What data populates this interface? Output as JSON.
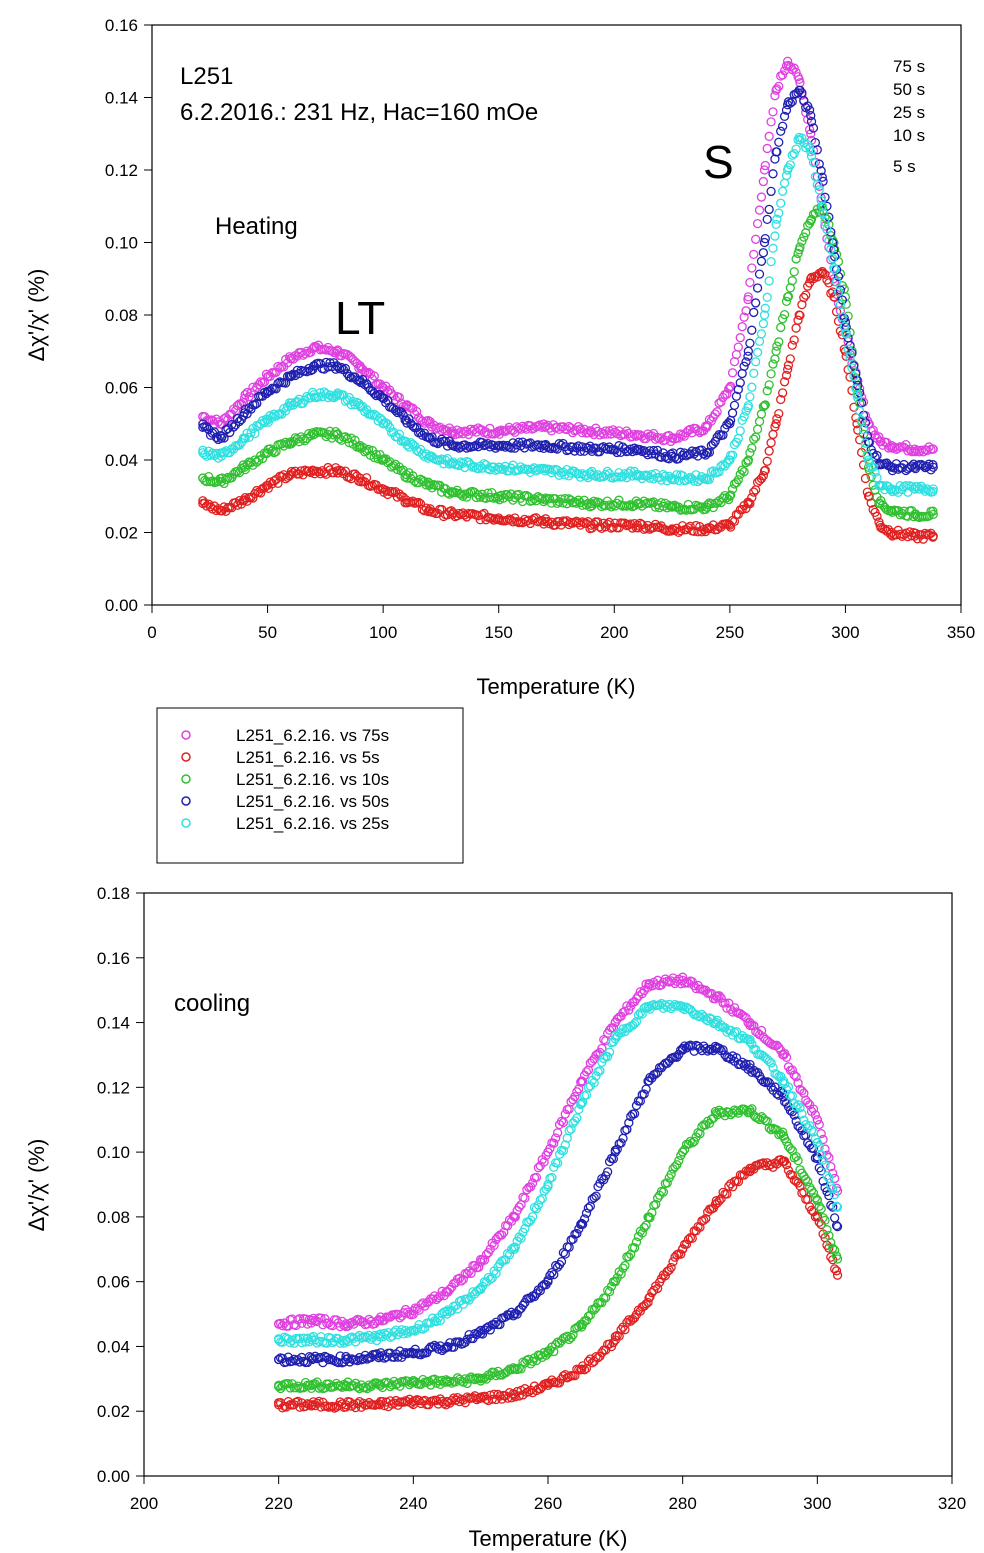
{
  "chart_data": [
    {
      "type": "scatter",
      "panel": "heating",
      "title": "",
      "xlabel": "Temperature (K)",
      "ylabel": "Δχ'/χ' (%)",
      "xlim": [
        0,
        350
      ],
      "ylim": [
        0,
        0.16
      ],
      "xticks": [
        0,
        50,
        100,
        150,
        200,
        250,
        300,
        350
      ],
      "yticks": [
        0.0,
        0.02,
        0.04,
        0.06,
        0.08,
        0.1,
        0.12,
        0.14,
        0.16
      ],
      "grid": false,
      "annotations": {
        "sample": "L251",
        "conditions": "6.2.2016.: 231 Hz, Hac=160 mOe",
        "mode": "Heating",
        "peak_lt": "LT",
        "peak_s": "S",
        "times": [
          "75 s",
          "50 s",
          "25 s",
          "10 s",
          "5 s"
        ]
      },
      "series": [
        {
          "name": "L251_6.2.16. vs 75s",
          "color": "#e040e0",
          "x": [
            22,
            30,
            40,
            50,
            60,
            70,
            80,
            90,
            100,
            110,
            120,
            130,
            150,
            170,
            190,
            210,
            225,
            240,
            250,
            258,
            265,
            270,
            275,
            280,
            285,
            290,
            295,
            300,
            305,
            310,
            315,
            320,
            330,
            338
          ],
          "y": [
            0.052,
            0.05,
            0.057,
            0.063,
            0.068,
            0.071,
            0.07,
            0.066,
            0.06,
            0.055,
            0.05,
            0.048,
            0.048,
            0.049,
            0.048,
            0.047,
            0.046,
            0.049,
            0.06,
            0.085,
            0.12,
            0.142,
            0.15,
            0.145,
            0.13,
            0.11,
            0.09,
            0.075,
            0.062,
            0.05,
            0.045,
            0.044,
            0.043,
            0.043
          ]
        },
        {
          "name": "L251_6.2.16. vs 5s",
          "color": "#e02020",
          "x": [
            22,
            30,
            40,
            50,
            60,
            70,
            80,
            90,
            100,
            110,
            120,
            130,
            150,
            170,
            190,
            210,
            225,
            240,
            250,
            258,
            265,
            270,
            275,
            280,
            285,
            290,
            295,
            300,
            305,
            310,
            315,
            320,
            330,
            338
          ],
          "y": [
            0.028,
            0.026,
            0.029,
            0.033,
            0.036,
            0.037,
            0.037,
            0.035,
            0.032,
            0.029,
            0.026,
            0.025,
            0.024,
            0.023,
            0.022,
            0.022,
            0.021,
            0.021,
            0.022,
            0.028,
            0.037,
            0.05,
            0.065,
            0.08,
            0.09,
            0.092,
            0.085,
            0.07,
            0.05,
            0.03,
            0.022,
            0.02,
            0.019,
            0.019
          ]
        },
        {
          "name": "L251_6.2.16. vs 10s",
          "color": "#30c030",
          "x": [
            22,
            30,
            40,
            50,
            60,
            70,
            80,
            90,
            100,
            110,
            120,
            130,
            150,
            170,
            190,
            210,
            225,
            240,
            250,
            258,
            265,
            270,
            275,
            280,
            285,
            290,
            295,
            300,
            305,
            310,
            315,
            320,
            330,
            338
          ],
          "y": [
            0.035,
            0.034,
            0.038,
            0.042,
            0.045,
            0.047,
            0.047,
            0.044,
            0.04,
            0.036,
            0.033,
            0.031,
            0.03,
            0.029,
            0.028,
            0.028,
            0.027,
            0.027,
            0.03,
            0.04,
            0.055,
            0.07,
            0.085,
            0.098,
            0.106,
            0.11,
            0.1,
            0.085,
            0.06,
            0.038,
            0.028,
            0.026,
            0.025,
            0.025
          ]
        },
        {
          "name": "L251_6.2.16. vs 50s",
          "color": "#2020b0",
          "x": [
            22,
            30,
            40,
            50,
            60,
            70,
            80,
            90,
            100,
            110,
            120,
            130,
            150,
            170,
            190,
            210,
            225,
            240,
            250,
            258,
            265,
            270,
            275,
            280,
            285,
            290,
            295,
            300,
            305,
            310,
            315,
            320,
            330,
            338
          ],
          "y": [
            0.049,
            0.046,
            0.053,
            0.059,
            0.063,
            0.066,
            0.066,
            0.062,
            0.057,
            0.051,
            0.046,
            0.044,
            0.044,
            0.044,
            0.043,
            0.043,
            0.041,
            0.042,
            0.05,
            0.07,
            0.1,
            0.125,
            0.138,
            0.142,
            0.135,
            0.118,
            0.098,
            0.078,
            0.062,
            0.045,
            0.039,
            0.038,
            0.038,
            0.038
          ]
        },
        {
          "name": "L251_6.2.16. vs 25s",
          "color": "#30e0e0",
          "x": [
            22,
            30,
            40,
            50,
            60,
            70,
            80,
            90,
            100,
            110,
            120,
            130,
            150,
            170,
            190,
            210,
            225,
            240,
            250,
            258,
            265,
            270,
            275,
            280,
            285,
            290,
            295,
            300,
            305,
            310,
            315,
            320,
            330,
            338
          ],
          "y": [
            0.042,
            0.041,
            0.046,
            0.051,
            0.055,
            0.058,
            0.058,
            0.055,
            0.05,
            0.045,
            0.041,
            0.039,
            0.038,
            0.037,
            0.036,
            0.036,
            0.035,
            0.035,
            0.04,
            0.055,
            0.08,
            0.105,
            0.12,
            0.129,
            0.125,
            0.11,
            0.093,
            0.075,
            0.058,
            0.04,
            0.033,
            0.032,
            0.032,
            0.032
          ]
        }
      ]
    },
    {
      "type": "scatter",
      "panel": "cooling",
      "title": "",
      "xlabel": "Temperature (K)",
      "ylabel": "Δχ'/χ' (%)",
      "xlim": [
        200,
        320
      ],
      "ylim": [
        0,
        0.18
      ],
      "xticks": [
        200,
        220,
        240,
        260,
        280,
        300,
        320
      ],
      "yticks": [
        0.0,
        0.02,
        0.04,
        0.06,
        0.08,
        0.1,
        0.12,
        0.14,
        0.16,
        0.18
      ],
      "grid": false,
      "annotations": {
        "mode": "cooling"
      },
      "series": [
        {
          "name": "L251_6.2.16. vs 75s",
          "color": "#e040e0",
          "x": [
            220,
            225,
            230,
            235,
            240,
            245,
            250,
            255,
            260,
            265,
            270,
            275,
            280,
            285,
            290,
            295,
            300,
            303
          ],
          "y": [
            0.047,
            0.048,
            0.047,
            0.048,
            0.051,
            0.057,
            0.066,
            0.08,
            0.1,
            0.122,
            0.14,
            0.152,
            0.153,
            0.148,
            0.14,
            0.13,
            0.11,
            0.088
          ]
        },
        {
          "name": "L251_6.2.16. vs 5s",
          "color": "#e02020",
          "x": [
            220,
            225,
            230,
            235,
            240,
            245,
            250,
            255,
            260,
            265,
            270,
            275,
            280,
            285,
            290,
            295,
            300,
            303
          ],
          "y": [
            0.022,
            0.022,
            0.022,
            0.022,
            0.023,
            0.023,
            0.024,
            0.025,
            0.028,
            0.033,
            0.042,
            0.055,
            0.07,
            0.085,
            0.095,
            0.097,
            0.08,
            0.062
          ]
        },
        {
          "name": "L251_6.2.16. vs 10s",
          "color": "#30c030",
          "x": [
            220,
            225,
            230,
            235,
            240,
            245,
            250,
            255,
            260,
            265,
            270,
            275,
            280,
            285,
            290,
            295,
            300,
            303
          ],
          "y": [
            0.028,
            0.028,
            0.028,
            0.028,
            0.029,
            0.029,
            0.03,
            0.033,
            0.038,
            0.046,
            0.06,
            0.08,
            0.1,
            0.112,
            0.113,
            0.105,
            0.085,
            0.067
          ]
        },
        {
          "name": "L251_6.2.16. vs 50s",
          "color": "#2020b0",
          "x": [
            220,
            225,
            230,
            235,
            240,
            245,
            250,
            255,
            260,
            265,
            270,
            275,
            280,
            285,
            290,
            295,
            300,
            303
          ],
          "y": [
            0.036,
            0.036,
            0.036,
            0.037,
            0.038,
            0.04,
            0.044,
            0.05,
            0.06,
            0.078,
            0.1,
            0.122,
            0.132,
            0.132,
            0.126,
            0.117,
            0.098,
            0.077
          ]
        },
        {
          "name": "L251_6.2.16. vs 25s",
          "color": "#30e0e0",
          "x": [
            220,
            225,
            230,
            235,
            240,
            245,
            250,
            255,
            260,
            265,
            270,
            275,
            280,
            285,
            290,
            295,
            300,
            303
          ],
          "y": [
            0.042,
            0.042,
            0.042,
            0.043,
            0.045,
            0.05,
            0.058,
            0.07,
            0.09,
            0.115,
            0.135,
            0.145,
            0.145,
            0.14,
            0.134,
            0.122,
            0.103,
            0.083
          ]
        }
      ]
    }
  ],
  "legend": {
    "entries": [
      "L251_6.2.16. vs 75s",
      "L251_6.2.16. vs 5s",
      "L251_6.2.16. vs 10s",
      "L251_6.2.16. vs 50s",
      "L251_6.2.16. vs 25s"
    ],
    "colors": [
      "#e040e0",
      "#e02020",
      "#30c030",
      "#2020b0",
      "#30e0e0"
    ]
  }
}
